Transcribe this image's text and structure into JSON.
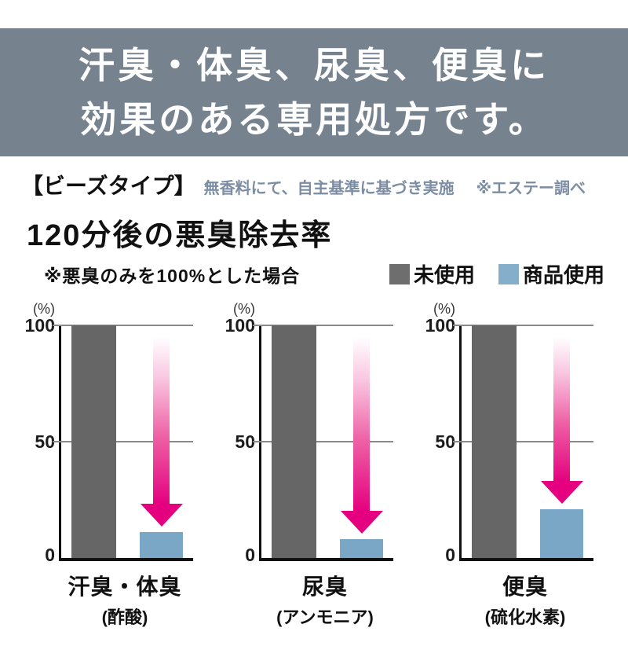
{
  "header": {
    "line1": "汗臭・体臭、尿臭、便臭に",
    "line2": "効果のある専用処方です。"
  },
  "subheader": {
    "type_label": "【ビーズタイプ】",
    "note": "無香料にて、自主基準に基づき実施",
    "source": "※エステー調べ"
  },
  "chart_data": {
    "type": "bar",
    "title": "120分後の悪臭除去率",
    "subtitle": "※悪臭のみを100%とした場合",
    "unit": "(%)",
    "ylim": [
      0,
      100
    ],
    "yticks": [
      100,
      50,
      0
    ],
    "grid": "horizontal lines at 100 and 50",
    "legend_position": "top-right",
    "legend": [
      {
        "label": "未使用",
        "color": "#6E6E6E"
      },
      {
        "label": "商品使用",
        "color": "#85AECB"
      }
    ],
    "groups": [
      {
        "label": "汗臭・体臭",
        "sublabel": "(酢酸)",
        "unused": 100,
        "product": 11
      },
      {
        "label": "尿臭",
        "sublabel": "(アンモニア)",
        "unused": 100,
        "product": 8
      },
      {
        "label": "便臭",
        "sublabel": "(硫化水素)",
        "unused": 100,
        "product": 21
      }
    ],
    "annotations": "magenta gradient arrows point down from 100% to each product-use bar"
  },
  "colors": {
    "banner_bg": "#76838F",
    "note_text": "#7C8DA3",
    "bar_unused": "#666666",
    "bar_product": "#7BA7C7",
    "arrow_magenta": "#E4007F",
    "grid": "#8A8A8A",
    "axis": "#111111",
    "text": "#111111"
  }
}
